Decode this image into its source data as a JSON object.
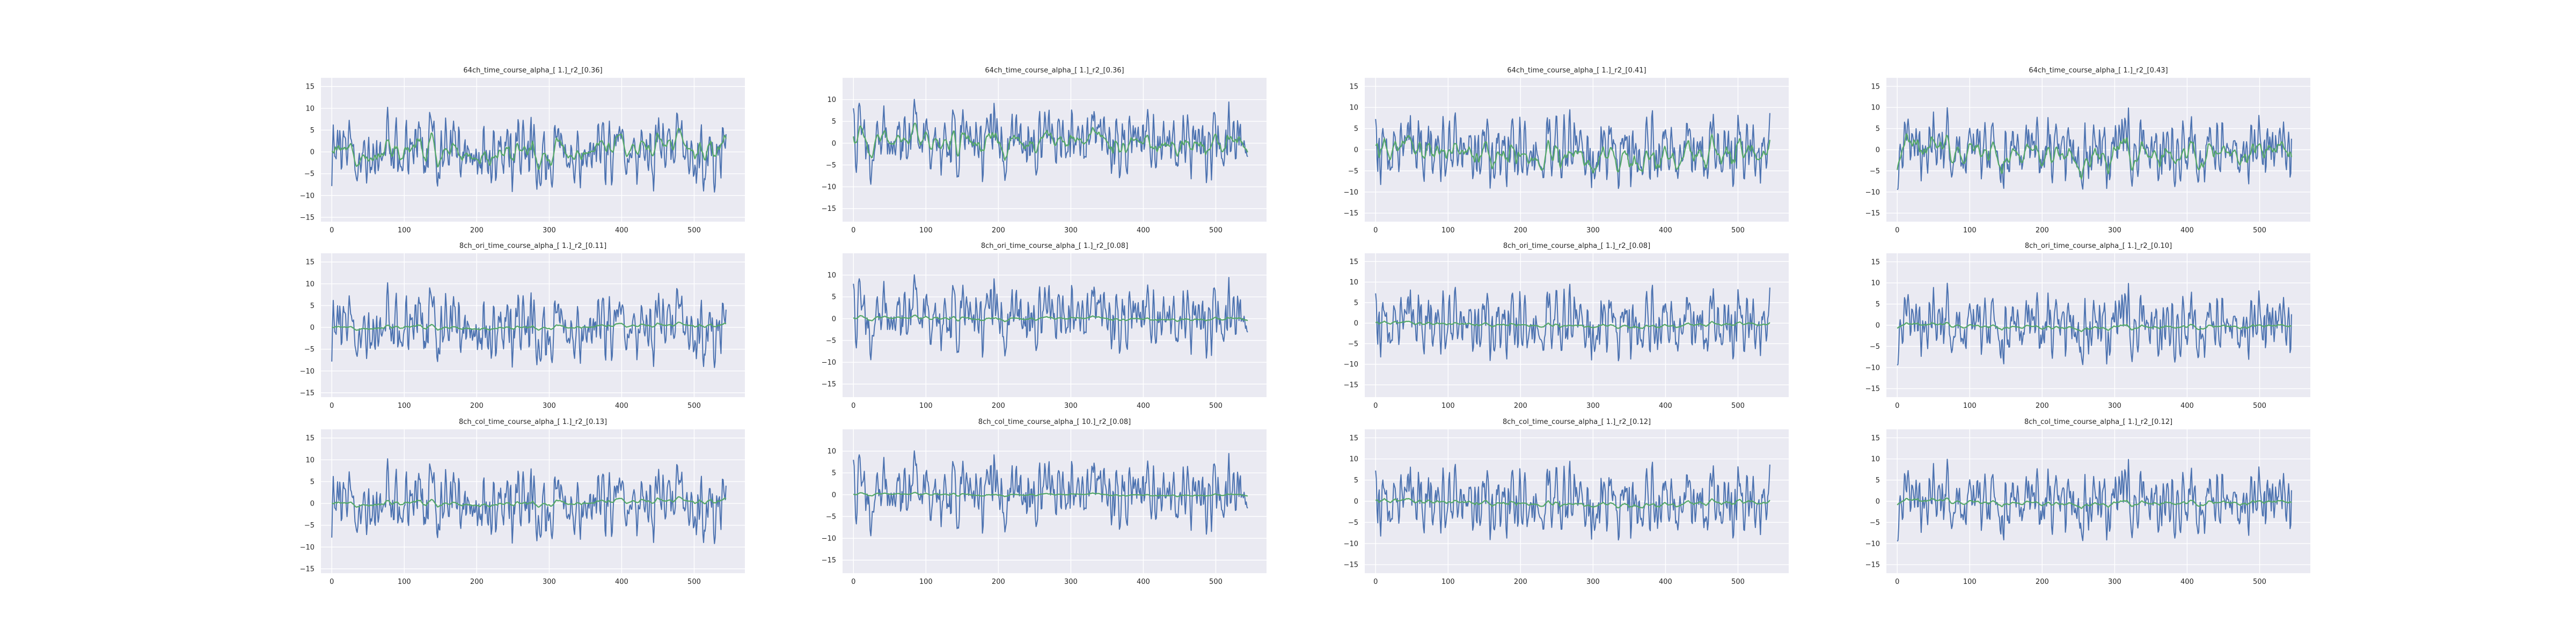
{
  "colors": {
    "figure_background": "#ffffff",
    "axes_background": "#eaeaf2",
    "grid": "#ffffff",
    "series_blue": "#4c72b0",
    "series_green": "#55a868",
    "text": "#262626"
  },
  "chart_data": [
    {
      "type": "line",
      "row": 0,
      "col": 0,
      "title": "64ch_time_course_alpha_[ 1.]_r2_[0.36]",
      "xlim": [
        -15,
        570
      ],
      "ylim": [
        -16,
        17
      ],
      "xticks": [
        0,
        100,
        200,
        300,
        400,
        500
      ],
      "yticks": [
        -15,
        -10,
        -5,
        0,
        5,
        10,
        15
      ],
      "grid": true,
      "n_points": 545,
      "series": [
        {
          "color": "#4c72b0",
          "amplitude": 5.5,
          "green_weight": 0.0,
          "seed": 11
        },
        {
          "color": "#55a868",
          "amplitude": 3.0,
          "green_weight": 0.75,
          "seed": 11
        }
      ]
    },
    {
      "type": "line",
      "row": 0,
      "col": 1,
      "title": "64ch_time_course_alpha_[ 1.]_r2_[0.36]",
      "xlim": [
        -15,
        570
      ],
      "ylim": [
        -18,
        15
      ],
      "xticks": [
        0,
        100,
        200,
        300,
        400,
        500
      ],
      "yticks": [
        -15,
        -10,
        -5,
        0,
        5,
        10
      ],
      "grid": true,
      "n_points": 545,
      "series": [
        {
          "color": "#4c72b0",
          "amplitude": 5.5,
          "green_weight": 0.0,
          "seed": 23
        },
        {
          "color": "#55a868",
          "amplitude": 3.0,
          "green_weight": 0.75,
          "seed": 23
        }
      ]
    },
    {
      "type": "line",
      "row": 0,
      "col": 2,
      "title": "64ch_time_course_alpha_[ 1.]_r2_[0.41]",
      "xlim": [
        -15,
        570
      ],
      "ylim": [
        -17,
        17
      ],
      "xticks": [
        0,
        100,
        200,
        300,
        400,
        500
      ],
      "yticks": [
        -15,
        -10,
        -5,
        0,
        5,
        10,
        15
      ],
      "grid": true,
      "n_points": 545,
      "series": [
        {
          "color": "#4c72b0",
          "amplitude": 5.5,
          "green_weight": 0.0,
          "seed": 37
        },
        {
          "color": "#55a868",
          "amplitude": 3.2,
          "green_weight": 0.8,
          "seed": 37
        }
      ]
    },
    {
      "type": "line",
      "row": 0,
      "col": 3,
      "title": "64ch_time_course_alpha_[ 1.]_r2_[0.43]",
      "xlim": [
        -15,
        570
      ],
      "ylim": [
        -17,
        17
      ],
      "xticks": [
        0,
        100,
        200,
        300,
        400,
        500
      ],
      "yticks": [
        -15,
        -10,
        -5,
        0,
        5,
        10,
        15
      ],
      "grid": true,
      "n_points": 545,
      "series": [
        {
          "color": "#4c72b0",
          "amplitude": 5.5,
          "green_weight": 0.0,
          "seed": 41
        },
        {
          "color": "#55a868",
          "amplitude": 3.3,
          "green_weight": 0.8,
          "seed": 41
        }
      ]
    },
    {
      "type": "line",
      "row": 1,
      "col": 0,
      "title": "8ch_ori_time_course_alpha_[ 1.]_r2_[0.11]",
      "xlim": [
        -15,
        570
      ],
      "ylim": [
        -16,
        17
      ],
      "xticks": [
        0,
        100,
        200,
        300,
        400,
        500
      ],
      "yticks": [
        -15,
        -10,
        -5,
        0,
        5,
        10,
        15
      ],
      "grid": true,
      "n_points": 545,
      "series": [
        {
          "color": "#4c72b0",
          "amplitude": 5.5,
          "green_weight": 0.0,
          "seed": 11
        },
        {
          "color": "#55a868",
          "amplitude": 1.2,
          "green_weight": 0.3,
          "seed": 11
        }
      ]
    },
    {
      "type": "line",
      "row": 1,
      "col": 1,
      "title": "8ch_ori_time_course_alpha_[ 1.]_r2_[0.08]",
      "xlim": [
        -15,
        570
      ],
      "ylim": [
        -18,
        15
      ],
      "xticks": [
        0,
        100,
        200,
        300,
        400,
        500
      ],
      "yticks": [
        -15,
        -10,
        -5,
        0,
        5,
        10
      ],
      "grid": true,
      "n_points": 545,
      "series": [
        {
          "color": "#4c72b0",
          "amplitude": 5.5,
          "green_weight": 0.0,
          "seed": 23
        },
        {
          "color": "#55a868",
          "amplitude": 1.2,
          "green_weight": 0.3,
          "seed": 23
        }
      ]
    },
    {
      "type": "line",
      "row": 1,
      "col": 2,
      "title": "8ch_ori_time_course_alpha_[ 1.]_r2_[0.08]",
      "xlim": [
        -15,
        570
      ],
      "ylim": [
        -18,
        17
      ],
      "xticks": [
        0,
        100,
        200,
        300,
        400,
        500
      ],
      "yticks": [
        -15,
        -10,
        -5,
        0,
        5,
        10,
        15
      ],
      "grid": true,
      "n_points": 545,
      "series": [
        {
          "color": "#4c72b0",
          "amplitude": 5.5,
          "green_weight": 0.0,
          "seed": 37
        },
        {
          "color": "#55a868",
          "amplitude": 1.2,
          "green_weight": 0.3,
          "seed": 37
        }
      ]
    },
    {
      "type": "line",
      "row": 1,
      "col": 3,
      "title": "8ch_ori_time_course_alpha_[ 1.]_r2_[0.10]",
      "xlim": [
        -15,
        570
      ],
      "ylim": [
        -17,
        17
      ],
      "xticks": [
        0,
        100,
        200,
        300,
        400,
        500
      ],
      "yticks": [
        -15,
        -10,
        -5,
        0,
        5,
        10,
        15
      ],
      "grid": true,
      "n_points": 545,
      "series": [
        {
          "color": "#4c72b0",
          "amplitude": 5.5,
          "green_weight": 0.0,
          "seed": 41
        },
        {
          "color": "#55a868",
          "amplitude": 1.3,
          "green_weight": 0.32,
          "seed": 41
        }
      ]
    },
    {
      "type": "line",
      "row": 2,
      "col": 0,
      "title": "8ch_col_time_course_alpha_[ 1.]_r2_[0.13]",
      "xlim": [
        -15,
        570
      ],
      "ylim": [
        -16,
        17
      ],
      "xticks": [
        0,
        100,
        200,
        300,
        400,
        500
      ],
      "yticks": [
        -15,
        -10,
        -5,
        0,
        5,
        10,
        15
      ],
      "grid": true,
      "n_points": 545,
      "series": [
        {
          "color": "#4c72b0",
          "amplitude": 5.5,
          "green_weight": 0.0,
          "seed": 11
        },
        {
          "color": "#55a868",
          "amplitude": 1.4,
          "green_weight": 0.35,
          "seed": 11
        }
      ]
    },
    {
      "type": "line",
      "row": 2,
      "col": 1,
      "title": "8ch_col_time_course_alpha_[ 10.]_r2_[0.08]",
      "xlim": [
        -15,
        570
      ],
      "ylim": [
        -18,
        15
      ],
      "xticks": [
        0,
        100,
        200,
        300,
        400,
        500
      ],
      "yticks": [
        -15,
        -10,
        -5,
        0,
        5,
        10
      ],
      "grid": true,
      "n_points": 545,
      "series": [
        {
          "color": "#4c72b0",
          "amplitude": 5.5,
          "green_weight": 0.0,
          "seed": 23
        },
        {
          "color": "#55a868",
          "amplitude": 1.0,
          "green_weight": 0.22,
          "seed": 23
        }
      ]
    },
    {
      "type": "line",
      "row": 2,
      "col": 2,
      "title": "8ch_col_time_course_alpha_[ 1.]_r2_[0.12]",
      "xlim": [
        -15,
        570
      ],
      "ylim": [
        -17,
        17
      ],
      "xticks": [
        0,
        100,
        200,
        300,
        400,
        500
      ],
      "yticks": [
        -15,
        -10,
        -5,
        0,
        5,
        10,
        15
      ],
      "grid": true,
      "n_points": 545,
      "series": [
        {
          "color": "#4c72b0",
          "amplitude": 5.5,
          "green_weight": 0.0,
          "seed": 37
        },
        {
          "color": "#55a868",
          "amplitude": 1.4,
          "green_weight": 0.35,
          "seed": 37
        }
      ]
    },
    {
      "type": "line",
      "row": 2,
      "col": 3,
      "title": "8ch_col_time_course_alpha_[ 1.]_r2_[0.12]",
      "xlim": [
        -15,
        570
      ],
      "ylim": [
        -17,
        17
      ],
      "xticks": [
        0,
        100,
        200,
        300,
        400,
        500
      ],
      "yticks": [
        -15,
        -10,
        -5,
        0,
        5,
        10,
        15
      ],
      "grid": true,
      "n_points": 545,
      "series": [
        {
          "color": "#4c72b0",
          "amplitude": 5.5,
          "green_weight": 0.0,
          "seed": 41
        },
        {
          "color": "#55a868",
          "amplitude": 1.4,
          "green_weight": 0.35,
          "seed": 41
        }
      ]
    }
  ]
}
